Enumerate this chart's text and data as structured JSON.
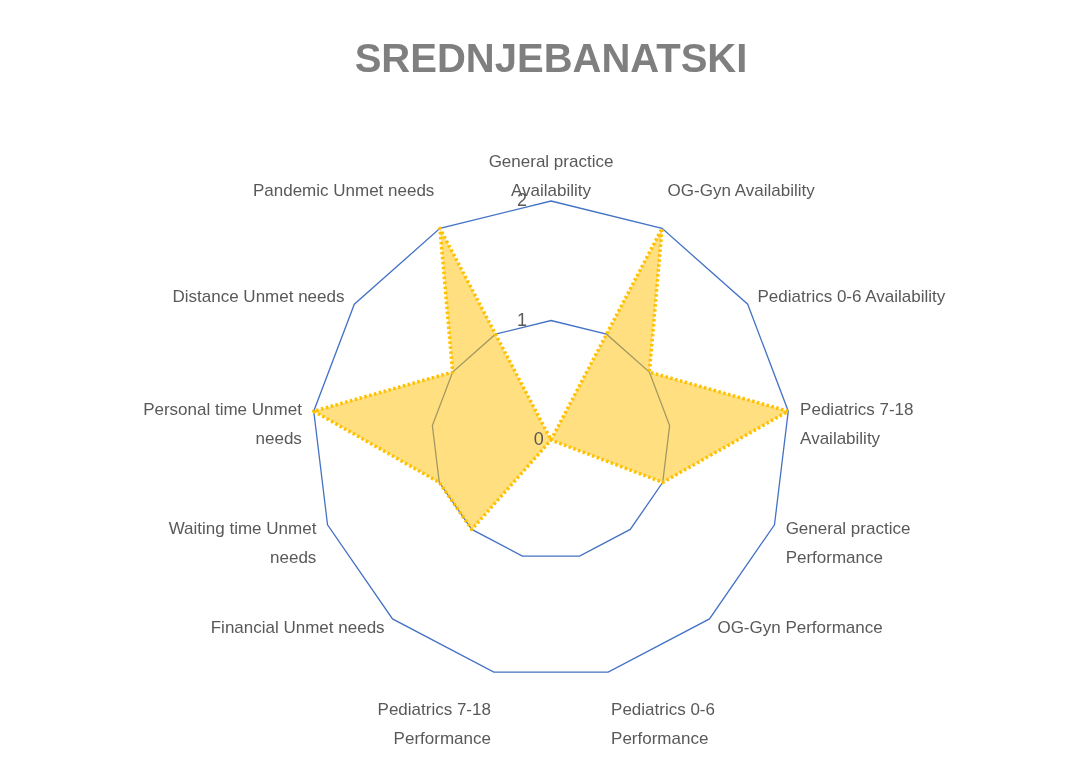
{
  "chart_data": {
    "type": "radar",
    "title": "SREDNJEBANATSKI",
    "categories": [
      "General practice Availability",
      "OG-Gyn Availability",
      "Pediatrics 0-6 Availability",
      "Pediatrics 7-18 Availability",
      "General practice Performance",
      "OG-Gyn Performance",
      "Pediatrics 0-6 Performance",
      "Pediatrics 7-18 Performance",
      "Financial Unmet needs",
      "Waiting time Unmet needs",
      "Personal time Unmet needs",
      "Distance Unmet needs",
      "Pandemic Unmet needs"
    ],
    "series": [
      {
        "color": "#ffc000",
        "values": [
          0,
          2,
          1,
          2,
          1,
          0,
          0,
          0,
          1,
          1,
          2,
          1,
          2
        ]
      }
    ],
    "ylim": [
      0,
      2
    ],
    "yticks": [
      0,
      1,
      2
    ],
    "grid": true,
    "marker": "none",
    "line_style": "dotted"
  }
}
